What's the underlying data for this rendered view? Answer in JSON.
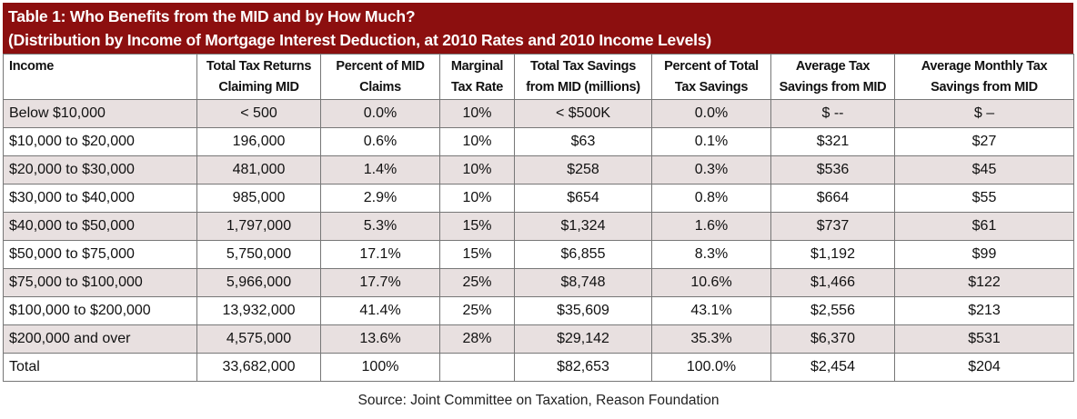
{
  "title": {
    "line1": "Table 1: Who Benefits from the MID and by How Much?",
    "line2": "(Distribution by Income of Mortgage Interest Deduction, at 2010 Rates and 2010 Income Levels)"
  },
  "columns": [
    {
      "l1": "Income",
      "l2": ""
    },
    {
      "l1": "Total Tax Returns",
      "l2": "Claiming MID"
    },
    {
      "l1": "Percent of MID",
      "l2": "Claims"
    },
    {
      "l1": "Marginal",
      "l2": "Tax Rate"
    },
    {
      "l1": "Total Tax Savings",
      "l2": "from MID (millions)"
    },
    {
      "l1": "Percent of Total",
      "l2": "Tax Savings"
    },
    {
      "l1": "Average Tax",
      "l2": "Savings from MID"
    },
    {
      "l1": "Average Monthly Tax",
      "l2": "Savings from MID"
    }
  ],
  "rows": [
    [
      "Below $10,000",
      "< 500",
      "0.0%",
      "10%",
      "< $500K",
      "0.0%",
      "$ --",
      "$ –"
    ],
    [
      "$10,000 to $20,000",
      "196,000",
      "0.6%",
      "10%",
      "$63",
      "0.1%",
      "$321",
      "$27"
    ],
    [
      "$20,000 to $30,000",
      "481,000",
      "1.4%",
      "10%",
      "$258",
      "0.3%",
      "$536",
      "$45"
    ],
    [
      "$30,000 to $40,000",
      "985,000",
      "2.9%",
      "10%",
      "$654",
      "0.8%",
      "$664",
      "$55"
    ],
    [
      "$40,000 to $50,000",
      "1,797,000",
      "5.3%",
      "15%",
      "$1,324",
      "1.6%",
      "$737",
      "$61"
    ],
    [
      "$50,000 to $75,000",
      "5,750,000",
      "17.1%",
      "15%",
      "$6,855",
      "8.3%",
      "$1,192",
      "$99"
    ],
    [
      "$75,000 to $100,000",
      "5,966,000",
      "17.7%",
      "25%",
      "$8,748",
      "10.6%",
      "$1,466",
      "$122"
    ],
    [
      "$100,000 to $200,000",
      "13,932,000",
      "41.4%",
      "25%",
      "$35,609",
      "43.1%",
      "$2,556",
      "$213"
    ],
    [
      "$200,000 and over",
      "4,575,000",
      "13.6%",
      "28%",
      "$29,142",
      "35.3%",
      "$6,370",
      "$531"
    ],
    [
      "Total",
      "33,682,000",
      "100%",
      "",
      "$82,653",
      "100.0%",
      "$2,454",
      "$204"
    ]
  ],
  "source": "Source: Joint Committee on Taxation, Reason Foundation",
  "colors": {
    "title_bg": "#8c0f0f",
    "shade_row": "#e8e0e0"
  }
}
